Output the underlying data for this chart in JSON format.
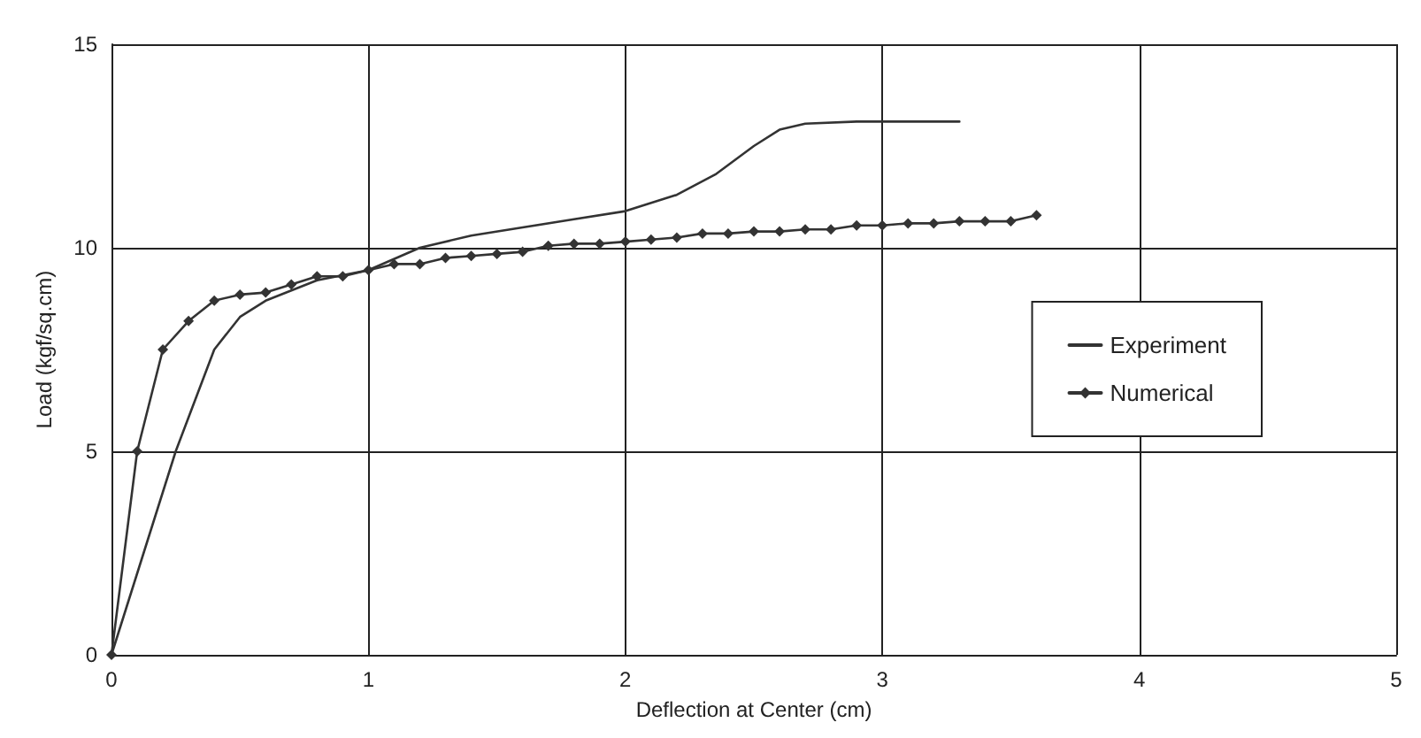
{
  "chart_data": {
    "type": "line",
    "xlabel": "Deflection at Center (cm)",
    "ylabel": "Load (kgf/sq.cm)",
    "xlim": [
      0,
      5
    ],
    "xticks": [
      0,
      1,
      2,
      3,
      4,
      5
    ],
    "ylim": [
      0,
      15
    ],
    "yticks": [
      0,
      5,
      10,
      15
    ],
    "grid": true,
    "legend": "right",
    "line_style": "solid",
    "series": [
      {
        "name": "Experiment",
        "color": "#333333",
        "marker": "none",
        "x": [
          0,
          0.25,
          0.4,
          0.5,
          0.6,
          0.8,
          1.0,
          1.2,
          1.4,
          1.6,
          1.8,
          2.0,
          2.2,
          2.35,
          2.5,
          2.6,
          2.7,
          2.9,
          3.3
        ],
        "values": [
          0,
          5,
          7.5,
          8.3,
          8.7,
          9.2,
          9.45,
          10.0,
          10.3,
          10.5,
          10.7,
          10.9,
          11.3,
          11.8,
          12.5,
          12.9,
          13.05,
          13.1,
          13.1
        ]
      },
      {
        "name": "Numerical",
        "color": "#333333",
        "marker": "diamond",
        "x": [
          0,
          0.1,
          0.2,
          0.3,
          0.4,
          0.5,
          0.6,
          0.7,
          0.8,
          0.9,
          1.0,
          1.1,
          1.2,
          1.3,
          1.4,
          1.5,
          1.6,
          1.7,
          1.8,
          1.9,
          2.0,
          2.1,
          2.2,
          2.3,
          2.4,
          2.5,
          2.6,
          2.7,
          2.8,
          2.9,
          3.0,
          3.1,
          3.2,
          3.3,
          3.4,
          3.5,
          3.6
        ],
        "values": [
          0,
          5,
          7.5,
          8.2,
          8.7,
          8.85,
          8.9,
          9.1,
          9.3,
          9.3,
          9.45,
          9.6,
          9.6,
          9.75,
          9.8,
          9.85,
          9.9,
          10.05,
          10.1,
          10.1,
          10.15,
          10.2,
          10.25,
          10.35,
          10.35,
          10.4,
          10.4,
          10.45,
          10.45,
          10.55,
          10.55,
          10.6,
          10.6,
          10.65,
          10.65,
          10.65,
          10.8
        ]
      }
    ]
  }
}
